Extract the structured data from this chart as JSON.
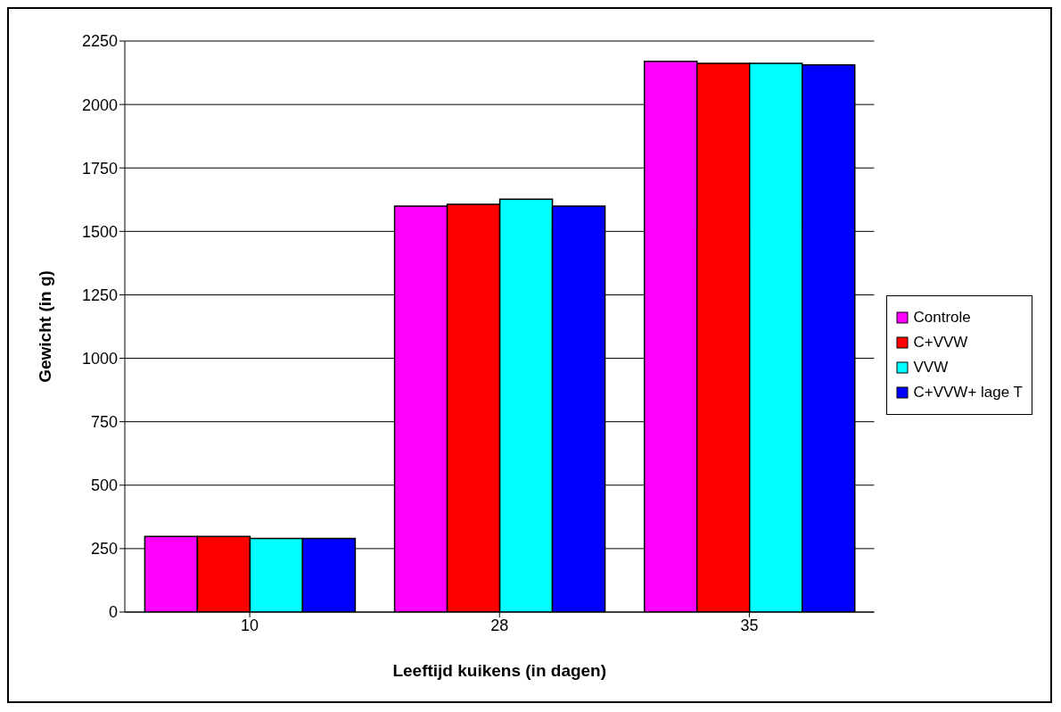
{
  "chart_data": {
    "type": "bar",
    "xlabel": "Leeftijd kuikens (in dagen)",
    "ylabel": "Gewicht (in g)",
    "categories": [
      "10",
      "28",
      "35"
    ],
    "series": [
      {
        "name": "Controle",
        "color": "#ff00ff",
        "values": [
          298,
          1600,
          2170
        ]
      },
      {
        "name": "C+VVW",
        "color": "#ff0000",
        "values": [
          298,
          1607,
          2162
        ]
      },
      {
        "name": "VVW",
        "color": "#00ffff",
        "values": [
          290,
          1627,
          2162
        ]
      },
      {
        "name": "C+VVW+ lage T",
        "color": "#0000ff",
        "values": [
          290,
          1600,
          2156
        ]
      }
    ],
    "ylim": [
      0,
      2250
    ],
    "yticks": [
      0,
      250,
      500,
      750,
      1000,
      1250,
      1500,
      1750,
      2000,
      2250
    ],
    "grid": "y",
    "legend": "right"
  }
}
